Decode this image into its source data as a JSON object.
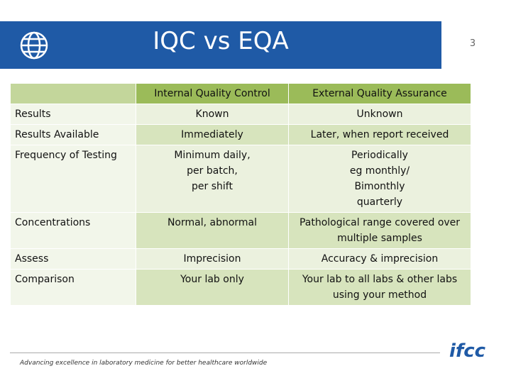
{
  "header": {
    "title": "IQC vs EQA",
    "page_number": "3"
  },
  "table": {
    "header": [
      "",
      "Internal Quality Control",
      "External Quality Assurance"
    ],
    "rows": [
      [
        "Results",
        "Known",
        "Unknown"
      ],
      [
        "Results Available",
        "Immediately",
        "Later, when report received"
      ],
      [
        "Frequency of Testing",
        "Minimum daily,\nper batch,\nper shift",
        "Periodically\neg  monthly/\nBimonthly\nquarterly"
      ],
      [
        "Concentrations",
        "Normal, abnormal",
        "Pathological range covered over\nmultiple samples"
      ],
      [
        "Assess",
        "Imprecision",
        "Accuracy & imprecision"
      ],
      [
        "Comparison",
        "Your lab only",
        "Your lab to all labs & other labs\nusing your method"
      ]
    ]
  },
  "footer": {
    "text": "Advancing excellence in laboratory medicine for better healthcare worldwide",
    "logo": "ifcc"
  }
}
